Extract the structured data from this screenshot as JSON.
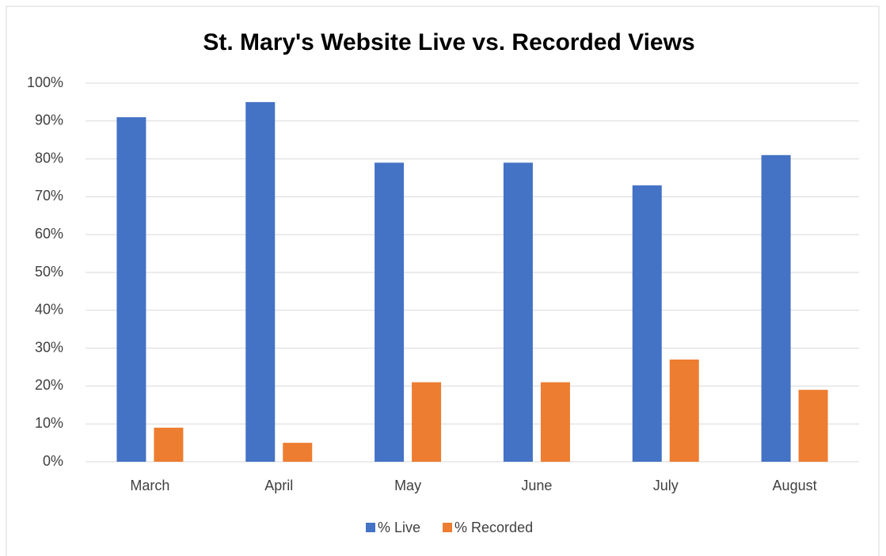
{
  "chart_data": {
    "type": "bar",
    "title": "St. Mary's Website Live vs. Recorded Views",
    "categories": [
      "March",
      "April",
      "May",
      "June",
      "July",
      "August"
    ],
    "series": [
      {
        "name": "% Live",
        "color": "#4472c4",
        "values": [
          91,
          95,
          79,
          79,
          73,
          81
        ]
      },
      {
        "name": "% Recorded",
        "color": "#ed7d31",
        "values": [
          9,
          5,
          21,
          21,
          27,
          19
        ]
      }
    ],
    "ylim": [
      0,
      100
    ],
    "yticks": [
      {
        "value": 0,
        "label": "0%"
      },
      {
        "value": 10,
        "label": "10%"
      },
      {
        "value": 20,
        "label": "20%"
      },
      {
        "value": 30,
        "label": "30%"
      },
      {
        "value": 40,
        "label": "40%"
      },
      {
        "value": 50,
        "label": "50%"
      },
      {
        "value": 60,
        "label": "60%"
      },
      {
        "value": 70,
        "label": "70%"
      },
      {
        "value": 80,
        "label": "80%"
      },
      {
        "value": 90,
        "label": "90%"
      },
      {
        "value": 100,
        "label": "100%"
      }
    ],
    "grid": true,
    "legend": "bottom"
  }
}
